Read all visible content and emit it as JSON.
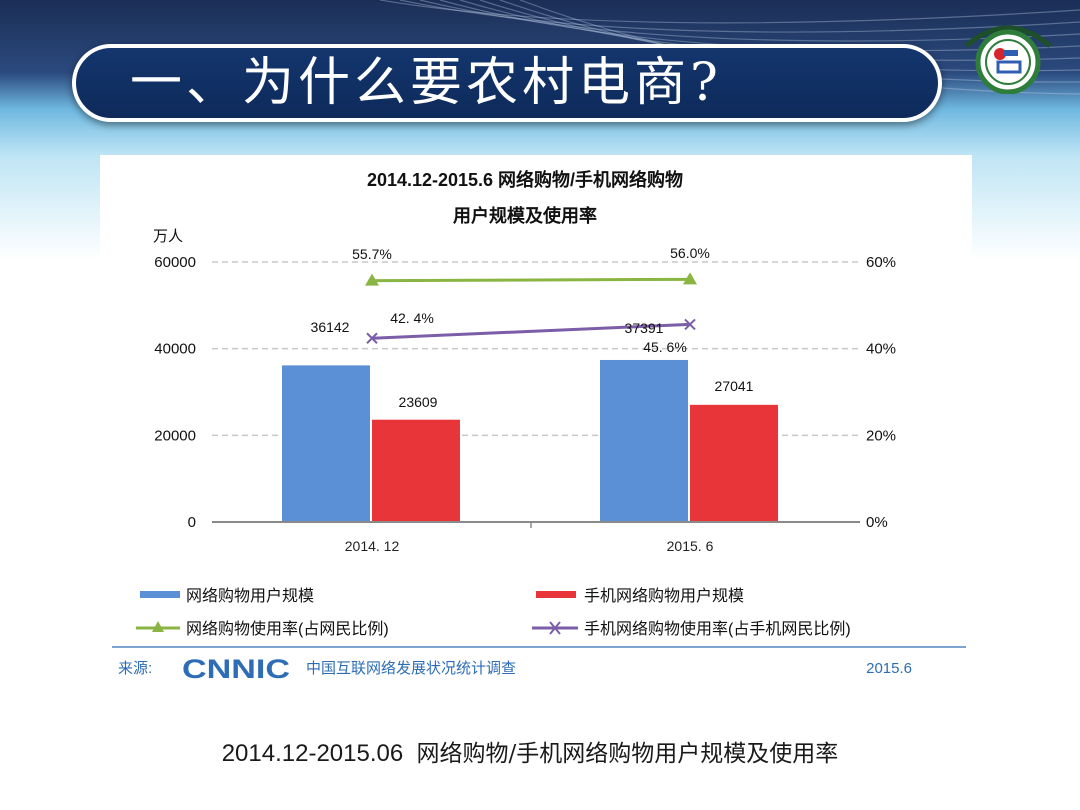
{
  "slide": {
    "title": "一、为什么要农村电商?",
    "caption_date": "2014.12-2015.06",
    "caption_text": "网络购物/手机网络购物用户规模及使用率"
  },
  "colors": {
    "header_dark": "#0d2a5a",
    "sky_blue": "#8fd0ec",
    "bar_blue": "#5b8fd6",
    "bar_red": "#e8353a",
    "line_green": "#8ab543",
    "line_purple": "#7b5ea7",
    "source_blue": "#2e6db5"
  },
  "icons": [
    "university-logo-icon",
    "cnnic-logo-icon"
  ],
  "chart_data": {
    "type": "bar",
    "title_line1": "2014.12-2015.6 网络购物/手机网络购物",
    "title_line2": "用户规模及使用率",
    "ylabel_left": "万人",
    "categories": [
      "2014. 12",
      "2015. 6"
    ],
    "ylim_left": [
      0,
      60000
    ],
    "yticks_left": [
      "0",
      "20000",
      "40000",
      "60000"
    ],
    "ylim_right": [
      0,
      60
    ],
    "yticks_right": [
      "0%",
      "20%",
      "40%",
      "60%"
    ],
    "grid": "dashed horizontal",
    "series": [
      {
        "name": "网络购物用户规模",
        "kind": "bar",
        "axis": "left",
        "values": [
          36142,
          37391
        ],
        "labels": [
          "36142",
          "37391"
        ]
      },
      {
        "name": "手机网络购物用户规模",
        "kind": "bar",
        "axis": "left",
        "values": [
          23609,
          27041
        ],
        "labels": [
          "23609",
          "27041"
        ]
      },
      {
        "name": "网络购物使用率(占网民比例)",
        "kind": "line",
        "marker": "triangle",
        "axis": "right",
        "values": [
          55.7,
          56.0
        ],
        "labels": [
          "55.7%",
          "56.0%"
        ]
      },
      {
        "name": "手机网络购物使用率(占手机网民比例)",
        "kind": "line",
        "marker": "x",
        "axis": "right",
        "values": [
          42.4,
          45.6
        ],
        "labels": [
          "42. 4%",
          "45. 6%"
        ]
      }
    ],
    "legend_position": "bottom",
    "source_label": "来源:",
    "source_org": "CNNIC",
    "source_text": "中国互联网络发展状况统计调查",
    "source_date": "2015.6"
  }
}
